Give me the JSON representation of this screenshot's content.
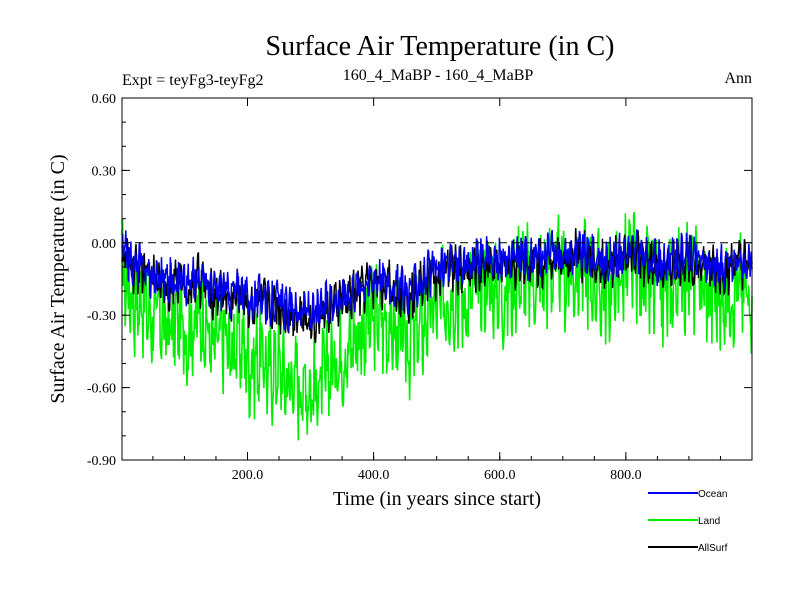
{
  "chart_data": {
    "type": "line",
    "title": "Surface Air Temperature (in C)",
    "subtitle_left": "Expt = teyFg3-teyFg2",
    "subtitle_center": "160_4_MaBP - 160_4_MaBP",
    "subtitle_right": "Ann",
    "xlabel": "Time (in years since start)",
    "ylabel": "Surface Air Temperature (in C)",
    "xlim": [
      1,
      1000
    ],
    "ylim": [
      -0.9,
      0.6
    ],
    "xticks": [
      200,
      400,
      600,
      800
    ],
    "xtick_labels": [
      "200.0",
      "400.0",
      "600.0",
      "800.0"
    ],
    "yticks": [
      -0.9,
      -0.6,
      -0.3,
      0.0,
      0.3,
      0.6
    ],
    "ytick_labels": [
      "-0.90",
      "-0.60",
      "-0.30",
      "0.00",
      "0.30",
      "0.60"
    ],
    "reference_line": 0.0,
    "legend_position": "bottom-right",
    "series": [
      {
        "name": "Land",
        "color": "#00ee00",
        "values": [
          -0.1,
          -0.18,
          -0.25,
          -0.22,
          -0.28,
          -0.32,
          -0.3,
          -0.35,
          -0.33,
          -0.3,
          -0.38,
          -0.35,
          -0.3,
          -0.33,
          -0.42,
          -0.4,
          -0.38,
          -0.45,
          -0.4,
          -0.42,
          -0.5,
          -0.48,
          -0.45,
          -0.55,
          -0.5,
          -0.52,
          -0.58,
          -0.55,
          -0.6,
          -0.58,
          -0.62,
          -0.58,
          -0.55,
          -0.5,
          -0.48,
          -0.45,
          -0.42,
          -0.38,
          -0.35,
          -0.33,
          -0.3,
          -0.33,
          -0.35,
          -0.38,
          -0.4,
          -0.42,
          -0.38,
          -0.35,
          -0.3,
          -0.28,
          -0.25,
          -0.22,
          -0.2,
          -0.22,
          -0.25,
          -0.2,
          -0.18,
          -0.15,
          -0.18,
          -0.2,
          -0.22,
          -0.18,
          -0.15,
          -0.12,
          -0.15,
          -0.18,
          -0.15,
          -0.12,
          -0.1,
          -0.12,
          -0.15,
          -0.12,
          -0.1,
          -0.12,
          -0.15,
          -0.18,
          -0.2,
          -0.18,
          -0.15,
          -0.12,
          -0.1,
          -0.12,
          -0.15,
          -0.18,
          -0.2,
          -0.22,
          -0.2,
          -0.18,
          -0.15,
          -0.12,
          -0.15,
          -0.18,
          -0.2,
          -0.22,
          -0.25,
          -0.22,
          -0.2,
          -0.18,
          -0.2,
          -0.22
        ]
      },
      {
        "name": "AllSurf",
        "color": "#000000",
        "values": [
          -0.05,
          -0.08,
          -0.12,
          -0.1,
          -0.14,
          -0.16,
          -0.15,
          -0.18,
          -0.17,
          -0.15,
          -0.2,
          -0.18,
          -0.15,
          -0.17,
          -0.22,
          -0.21,
          -0.2,
          -0.24,
          -0.21,
          -0.22,
          -0.26,
          -0.25,
          -0.23,
          -0.28,
          -0.26,
          -0.27,
          -0.3,
          -0.28,
          -0.31,
          -0.3,
          -0.32,
          -0.3,
          -0.28,
          -0.26,
          -0.25,
          -0.23,
          -0.22,
          -0.2,
          -0.18,
          -0.17,
          -0.15,
          -0.17,
          -0.18,
          -0.2,
          -0.21,
          -0.22,
          -0.2,
          -0.18,
          -0.15,
          -0.14,
          -0.13,
          -0.11,
          -0.1,
          -0.11,
          -0.13,
          -0.1,
          -0.09,
          -0.08,
          -0.09,
          -0.1,
          -0.11,
          -0.09,
          -0.08,
          -0.06,
          -0.08,
          -0.09,
          -0.08,
          -0.06,
          -0.05,
          -0.06,
          -0.08,
          -0.06,
          -0.05,
          -0.06,
          -0.08,
          -0.09,
          -0.1,
          -0.09,
          -0.08,
          -0.06,
          -0.05,
          -0.06,
          -0.08,
          -0.09,
          -0.1,
          -0.11,
          -0.1,
          -0.09,
          -0.08,
          -0.06,
          -0.08,
          -0.09,
          -0.1,
          -0.11,
          -0.13,
          -0.11,
          -0.1,
          -0.09,
          -0.1,
          -0.11
        ]
      },
      {
        "name": "Ocean",
        "color": "#0000ee",
        "values": [
          -0.03,
          -0.06,
          -0.1,
          -0.08,
          -0.12,
          -0.14,
          -0.13,
          -0.16,
          -0.15,
          -0.13,
          -0.18,
          -0.16,
          -0.13,
          -0.15,
          -0.2,
          -0.19,
          -0.18,
          -0.22,
          -0.19,
          -0.2,
          -0.24,
          -0.23,
          -0.21,
          -0.26,
          -0.24,
          -0.25,
          -0.28,
          -0.26,
          -0.29,
          -0.28,
          -0.3,
          -0.28,
          -0.26,
          -0.24,
          -0.23,
          -0.21,
          -0.2,
          -0.18,
          -0.16,
          -0.15,
          -0.13,
          -0.15,
          -0.16,
          -0.18,
          -0.19,
          -0.2,
          -0.18,
          -0.16,
          -0.13,
          -0.12,
          -0.11,
          -0.09,
          -0.08,
          -0.09,
          -0.11,
          -0.08,
          -0.07,
          -0.06,
          -0.07,
          -0.08,
          -0.09,
          -0.07,
          -0.06,
          -0.04,
          -0.06,
          -0.07,
          -0.06,
          -0.04,
          -0.03,
          -0.04,
          -0.06,
          -0.04,
          -0.03,
          -0.04,
          -0.06,
          -0.07,
          -0.08,
          -0.07,
          -0.06,
          -0.04,
          -0.03,
          -0.04,
          -0.06,
          -0.07,
          -0.08,
          -0.09,
          -0.08,
          -0.07,
          -0.06,
          -0.04,
          -0.06,
          -0.07,
          -0.08,
          -0.09,
          -0.11,
          -0.09,
          -0.08,
          -0.07,
          -0.08,
          -0.09
        ]
      }
    ],
    "legend": [
      {
        "name": "Ocean",
        "color": "#0000ee"
      },
      {
        "name": "Land",
        "color": "#00ee00"
      },
      {
        "name": "AllSurf",
        "color": "#000000"
      }
    ]
  }
}
